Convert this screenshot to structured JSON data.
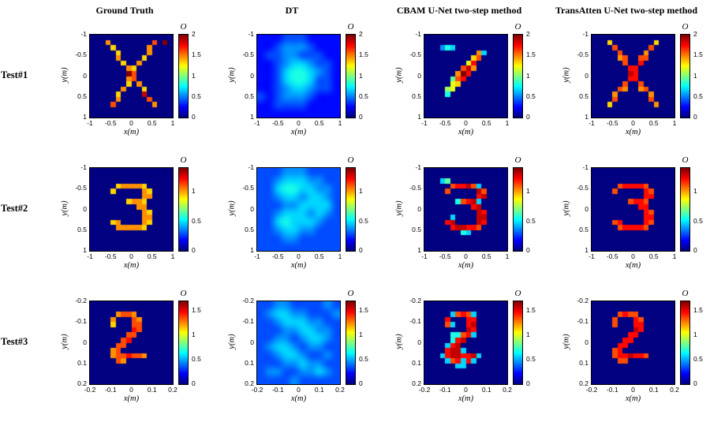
{
  "chart_data": {
    "type": "heatmap",
    "layout": "3x4 grid of jet-colormap heatmap subplots comparing reconstruction methods",
    "colormap": "jet",
    "grid": {
      "rows": 3,
      "cols": 4
    },
    "column_titles": [
      "Ground Truth",
      "DT",
      "CBAM U-Net two-step method",
      "TransAtten U-Net two-step method"
    ],
    "row_labels": [
      "Test#1",
      "Test#2",
      "Test#3"
    ],
    "rows": [
      {
        "label": "Test#1",
        "content": "letter X shaped scatterer",
        "xlabel": "x(m)",
        "ylabel": "y(m)",
        "x_ticks": [
          "-1",
          "-0.5",
          "0",
          "0.5",
          "1"
        ],
        "y_ticks": [
          "-1",
          "-0.5",
          "0",
          "0.5",
          "1"
        ],
        "x_range": [
          -1,
          1
        ],
        "y_range": [
          -1,
          1
        ],
        "colorbar": {
          "label": "O",
          "max": 2,
          "ticks": [
            0,
            0.5,
            1,
            1.5,
            2
          ]
        }
      },
      {
        "label": "Test#2",
        "content": "digit 3 shaped scatterer",
        "xlabel": "x(m)",
        "ylabel": "y(m)",
        "x_ticks": [
          "-1",
          "-0.5",
          "0",
          "0.5",
          "1"
        ],
        "y_ticks": [
          "-1",
          "-0.5",
          "0",
          "0.5",
          "1"
        ],
        "x_range": [
          -1,
          1
        ],
        "y_range": [
          -1,
          1
        ],
        "colorbar": {
          "label": "O",
          "max": 1.4,
          "ticks": [
            0,
            0.5,
            1
          ]
        }
      },
      {
        "label": "Test#3",
        "content": "digit 2 shaped scatterer",
        "xlabel": "x(m)",
        "ylabel": "y(m)",
        "x_ticks": [
          "-0.2",
          "-0.1",
          "0",
          "0.1",
          "0.2"
        ],
        "y_ticks": [
          "-0.2",
          "-0.1",
          "0",
          "0.1",
          "0.2"
        ],
        "x_range": [
          -0.2,
          0.2
        ],
        "y_range": [
          -0.2,
          0.2
        ],
        "colorbar": {
          "label": "O",
          "max": 1.7,
          "ticks": [
            0,
            0.5,
            1,
            1.5
          ]
        }
      }
    ],
    "cells": [
      [
        {
          "description": "crisp pixelated X shape, yellow-orange with red center and stray red pixel top-right, dark blue background",
          "smooth": false,
          "pixels": [
            "0000000000000000",
            "000b00000000c0f0",
            "0000a000000b0000",
            "00000a00000b0000",
            "00000b0000a00000",
            "000000a00b000000",
            "0000000ba0000000",
            "0000000fc0000000",
            "0000000bc0000000",
            "0000000a0b000000",
            "000000b000a00000",
            "00000a0000e00000",
            "00000b00000c0000",
            "0000c0000000b000",
            "0000000000000000",
            "0000000000000000"
          ]
        },
        {
          "description": "blurred low-intensity blue/cyan blob, shape not recognizable",
          "smooth": true,
          "pixels": [
            "2223332222",
            "2234443222",
            "2334433322",
            "2234554332",
            "2235665432",
            "2235665332",
            "2234554332",
            "3234443222",
            "2233332222",
            "2222222222"
          ]
        },
        {
          "description": "partial X: bright orange-red center blob with one diagonal recovered, cyan speckles",
          "smooth": false,
          "pixels": [
            "0000000000000000",
            "0000000000000000",
            "0004650000000000",
            "0000000000b50000",
            "000000000ac00000",
            "000000009d000000",
            "0000000ceb000000",
            "000000bfd0000000",
            "000007cd00000000",
            "000009a000000000",
            "0000890000000000",
            "0000600000000000",
            "0000000000000000",
            "0000000000000000",
            "0000000000000000",
            "0000000000000000"
          ]
        },
        {
          "description": "well reconstructed X shape, orange, close to ground truth",
          "smooth": false,
          "pixels": [
            "0000000000000000",
            "000a00000000a000",
            "0000c000000c0000",
            "00000c0000b00000",
            "00000bc00cc00000",
            "000000c00d000000",
            "0000000dd0000000",
            "0000000ed0000000",
            "0000000dd0000000",
            "000000c00c000000",
            "00000cb00bc00000",
            "0000b000000b0000",
            "0000c000000c0000",
            "000a00000000b000",
            "0000000000000000",
            "0000000000000000"
          ]
        }
      ],
      [
        {
          "description": "crisp pixelated digit 3, yellow-orange on dark blue background",
          "smooth": false,
          "pixels": [
            "0000000000000000",
            "0000000000000000",
            "0000000000000000",
            "00000abbbba00000",
            "0000a00000ba0000",
            "0000000000bb0000",
            "0000000abba00000",
            "000000000bb00000",
            "0000000000ba0000",
            "0000000000bb0000",
            "0000ab0000ba0000",
            "00000bbbbba00000",
            "0000000000000000",
            "0000000000000000",
            "0000000000000000",
            "0000000000000000"
          ]
        },
        {
          "description": "blurred cyan-blue blob with faint 3-like structure",
          "smooth": true,
          "pixels": [
            "3334443333",
            "3345554433",
            "3356655443",
            "3345545543",
            "3334455553",
            "3345554543",
            "3356555433",
            "3345544333",
            "3334433333",
            "3333333333"
          ]
        },
        {
          "description": "digit 3 recovered in red-orange with blotchy interior and cyan fringes",
          "smooth": false,
          "pixels": [
            "0000000000000000",
            "0000000000000000",
            "0005700000000000",
            "00000cddec500000",
            "0000c00000ec0000",
            "0000000000de0000",
            "0000006cde500000",
            "000000000de00000",
            "0000000000ed0000",
            "0000050000ee0000",
            "0000de0000ed0000",
            "00000deeddc00000",
            "0000000650000000",
            "0000000000000000",
            "0000000000000000",
            "0000000000000000"
          ]
        },
        {
          "description": "clean digit 3 reconstruction, orange-red, close to ground truth",
          "smooth": false,
          "pixels": [
            "0000000000000000",
            "0000000000000000",
            "0000000000000000",
            "00000cddddc00000",
            "0000c00000dc0000",
            "0000000000dd0000",
            "0000000cddc00000",
            "000000000dd00000",
            "0000000000dc0000",
            "0000000000dd0000",
            "0000cd0000dc0000",
            "00000cddddc00000",
            "0000000000000000",
            "0000000000000000",
            "0000000000000000",
            "0000000000000000"
          ]
        }
      ],
      [
        {
          "description": "crisp pixelated cursive digit 2, orange-red on dark blue background",
          "smooth": false,
          "pixels": [
            "0000000000000000",
            "0000000000000000",
            "00000bccb0000000",
            "0000b000cb000000",
            "0000a000cc000000",
            "00000000dc000000",
            "0000000cc0000000",
            "000000cd00000000",
            "00000cc000000000",
            "0000bc0000000000",
            "0000bccdccb00000",
            "00000cb000000000",
            "0000000000000000",
            "0000000000000000",
            "0000000000000000",
            "0000000000000000"
          ]
        },
        {
          "description": "blurred scattered cyan blobs, shape barely visible",
          "smooth": true,
          "pixels": [
            "3344333343",
            "3455443334",
            "3345554433",
            "3334455443",
            "3344345543",
            "3455434433",
            "3345543343",
            "3334454433",
            "3443344543",
            "3333433333"
          ]
        },
        {
          "description": "digit 2 recovered in red-orange, messy with cyan fringes and extra blobs",
          "smooth": false,
          "pixels": [
            "0000000000000000",
            "0000000000000000",
            "000005cdc5000000",
            "0000d000dd000000",
            "0000c500de000000",
            "00000000ed000000",
            "0000066cd5000000",
            "000006de00000000",
            "00005de000000000",
            "0000dee500000000",
            "0005deedde500000",
            "00005cd5d5000000",
            "0000005500000000",
            "0000000000000000",
            "0000000000000000",
            "0000000000000000"
          ]
        },
        {
          "description": "clean digit 2 reconstruction, orange-red, close to ground truth",
          "smooth": false,
          "pixels": [
            "0000000000000000",
            "0000000000000000",
            "00000cdcc0000000",
            "0000c000dc000000",
            "0000c000dd000000",
            "00000000ed000000",
            "0000000dd0000000",
            "000000dd00000000",
            "00000dd000000000",
            "0000cd0000000000",
            "0000cddeddc00000",
            "00000cc000000000",
            "0000000000000000",
            "0000000000000000",
            "0000000000000000",
            "0000000000000000"
          ]
        }
      ]
    ]
  }
}
